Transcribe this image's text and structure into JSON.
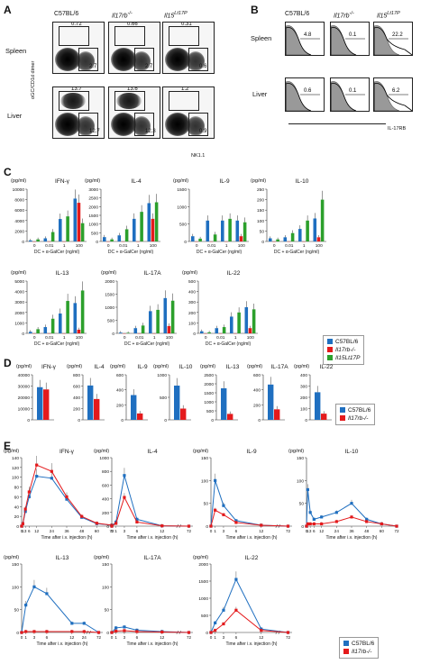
{
  "panels": {
    "A": "A",
    "B": "B",
    "C": "C",
    "D": "D",
    "E": "E"
  },
  "genotypes": {
    "wt": "C57BL/6",
    "ko": "Il17rb",
    "ko_sup": "-/-",
    "tg": "Il15",
    "tg_sup": "Lt17P"
  },
  "panelA": {
    "rows": [
      "Spleen",
      "Liver"
    ],
    "yaxis": "αGC/CD1d dimer",
    "xaxis": "NK1.1",
    "spleen": [
      {
        "top": "0.72",
        "bot": "2.7"
      },
      {
        "top": "0.66",
        "bot": "2.7"
      },
      {
        "top": "0.31",
        "bot": "0.6"
      }
    ],
    "liver": [
      {
        "top": "13.7",
        "bot": "12.7"
      },
      {
        "top": "13.6",
        "bot": "12.3"
      },
      {
        "top": "1.2",
        "bot": "0.9"
      }
    ]
  },
  "panelB": {
    "rows": [
      "Spleen",
      "Liver"
    ],
    "xaxis": "IL-17RB",
    "spleen": [
      "4.8",
      "0.1",
      "22.2"
    ],
    "liver": [
      "0.6",
      "0.1",
      "6.2"
    ]
  },
  "panelC": {
    "unit": "(pg/ml)",
    "xlabel": "DC + α-GalCer (ng/ml)",
    "legend": [
      "C57BL/6",
      "Il17rb-/-",
      "Il15Lt17P"
    ],
    "colors": {
      "wt": "#1f6fc0",
      "ko": "#e41a1c",
      "tg": "#2ca02c"
    }
  },
  "chart_data": [
    {
      "type": "bar",
      "panel": "C",
      "title": "IL-4",
      "categories": [
        "0",
        "0.01",
        "1",
        "100"
      ],
      "ylim": [
        0,
        3000
      ],
      "yticks": [
        "0",
        "500",
        "1000",
        "1500",
        "2000",
        "2500",
        "3000"
      ],
      "series": [
        {
          "name": "C57BL/6",
          "values": [
            250,
            350,
            1300,
            2200
          ]
        },
        {
          "name": "Il17rb-/-",
          "values": [
            0,
            0,
            0,
            1300
          ]
        },
        {
          "name": "Il15Lt17P",
          "values": [
            120,
            700,
            1700,
            2250
          ]
        }
      ]
    },
    {
      "type": "bar",
      "panel": "C",
      "title": "IFN-γ",
      "categories": [
        "0",
        "0.01",
        "1",
        "100"
      ],
      "ylim": [
        0,
        10000
      ],
      "yticks": [
        "0",
        "2000",
        "4000",
        "6000",
        "8000",
        "10000"
      ],
      "series": [
        {
          "name": "C57BL/6",
          "values": [
            200,
            600,
            4300,
            8200
          ]
        },
        {
          "name": "Il17rb-/-",
          "values": [
            0,
            0,
            0,
            7400
          ]
        },
        {
          "name": "Il15Lt17P",
          "values": [
            400,
            1800,
            4800,
            3500
          ]
        }
      ]
    },
    {
      "type": "bar",
      "panel": "C",
      "title": "IL-9",
      "categories": [
        "0",
        "0.01",
        "1",
        "100"
      ],
      "ylim": [
        0,
        1500
      ],
      "yticks": [
        "0",
        "500",
        "1000",
        "1500"
      ],
      "series": [
        {
          "name": "C57BL/6",
          "values": [
            150,
            600,
            600,
            600
          ]
        },
        {
          "name": "Il17rb-/-",
          "values": [
            0,
            0,
            0,
            150
          ]
        },
        {
          "name": "Il15Lt17P",
          "values": [
            80,
            200,
            650,
            550
          ]
        }
      ]
    },
    {
      "type": "bar",
      "panel": "C",
      "title": "IL-10",
      "categories": [
        "0",
        "0.01",
        "1",
        "100"
      ],
      "ylim": [
        0,
        250
      ],
      "yticks": [
        "0",
        "50",
        "100",
        "150",
        "200",
        "250"
      ],
      "series": [
        {
          "name": "C57BL/6",
          "values": [
            15,
            20,
            60,
            110
          ]
        },
        {
          "name": "Il17rb-/-",
          "values": [
            0,
            0,
            0,
            20
          ]
        },
        {
          "name": "Il15Lt17P",
          "values": [
            10,
            40,
            100,
            200
          ]
        }
      ]
    },
    {
      "type": "bar",
      "panel": "C",
      "title": "IL-13",
      "categories": [
        "0",
        "0.01",
        "1",
        "100"
      ],
      "ylim": [
        0,
        5000
      ],
      "yticks": [
        "0",
        "1000",
        "2000",
        "3000",
        "4000",
        "5000"
      ],
      "series": [
        {
          "name": "C57BL/6",
          "values": [
            150,
            600,
            1900,
            2900
          ]
        },
        {
          "name": "Il17rb-/-",
          "values": [
            0,
            0,
            0,
            350
          ]
        },
        {
          "name": "Il15Lt17P",
          "values": [
            400,
            1400,
            3100,
            4100
          ]
        }
      ]
    },
    {
      "type": "bar",
      "panel": "C",
      "title": "IL-17A",
      "categories": [
        "0",
        "0.01",
        "1",
        "100"
      ],
      "ylim": [
        0,
        2000
      ],
      "yticks": [
        "0",
        "500",
        "1000",
        "1500",
        "2000"
      ],
      "series": [
        {
          "name": "C57BL/6",
          "values": [
            30,
            200,
            850,
            1350
          ]
        },
        {
          "name": "Il17rb-/-",
          "values": [
            0,
            0,
            0,
            280
          ]
        },
        {
          "name": "Il15Lt17P",
          "values": [
            20,
            300,
            900,
            1250
          ]
        }
      ]
    },
    {
      "type": "bar",
      "panel": "C",
      "title": "IL-22",
      "categories": [
        "0",
        "0.01",
        "1",
        "100"
      ],
      "ylim": [
        0,
        500
      ],
      "yticks": [
        "0",
        "100",
        "200",
        "300",
        "400",
        "500"
      ],
      "series": [
        {
          "name": "C57BL/6",
          "values": [
            20,
            50,
            160,
            250
          ]
        },
        {
          "name": "Il17rb-/-",
          "values": [
            0,
            0,
            0,
            50
          ]
        },
        {
          "name": "Il15Lt17P",
          "values": [
            10,
            60,
            200,
            230
          ]
        }
      ]
    },
    {
      "type": "bar",
      "panel": "D",
      "title": "IFN-γ",
      "ylim": [
        0,
        40000
      ],
      "yticks": [
        "0",
        "10000",
        "20000",
        "30000",
        "40000"
      ],
      "series": [
        {
          "name": "C57BL/6",
          "values": [
            29000
          ]
        },
        {
          "name": "Il17rb-/-",
          "values": [
            27000
          ]
        }
      ]
    },
    {
      "type": "bar",
      "panel": "D",
      "title": "IL-4",
      "ylim": [
        0,
        800
      ],
      "yticks": [
        "0",
        "200",
        "400",
        "600",
        "800"
      ],
      "series": [
        {
          "name": "C57BL/6",
          "values": [
            610
          ]
        },
        {
          "name": "Il17rb-/-",
          "values": [
            370
          ]
        }
      ]
    },
    {
      "type": "bar",
      "panel": "D",
      "title": "IL-9",
      "ylim": [
        0,
        600
      ],
      "yticks": [
        "0",
        "200",
        "400",
        "600"
      ],
      "series": [
        {
          "name": "C57BL/6",
          "values": [
            330
          ]
        },
        {
          "name": "Il17rb-/-",
          "values": [
            85
          ]
        }
      ]
    },
    {
      "type": "bar",
      "panel": "D",
      "title": "IL-10",
      "ylim": [
        0,
        1000
      ],
      "yticks": [
        "0",
        "500",
        "1000"
      ],
      "series": [
        {
          "name": "C57BL/6",
          "values": [
            760
          ]
        },
        {
          "name": "Il17rb-/-",
          "values": [
            250
          ]
        }
      ]
    },
    {
      "type": "bar",
      "panel": "D",
      "title": "IL-13",
      "ylim": [
        0,
        2500
      ],
      "yticks": [
        "0",
        "500",
        "1000",
        "1500",
        "2000",
        "2500"
      ],
      "series": [
        {
          "name": "C57BL/6",
          "values": [
            1750
          ]
        },
        {
          "name": "Il17rb-/-",
          "values": [
            330
          ]
        }
      ]
    },
    {
      "type": "bar",
      "panel": "D",
      "title": "IL-17A",
      "ylim": [
        0,
        600
      ],
      "yticks": [
        "0",
        "200",
        "400",
        "600"
      ],
      "series": [
        {
          "name": "C57BL/6",
          "values": [
            470
          ]
        },
        {
          "name": "Il17rb-/-",
          "values": [
            140
          ]
        }
      ]
    },
    {
      "type": "bar",
      "panel": "D",
      "title": "IL-22",
      "ylim": [
        0,
        400
      ],
      "yticks": [
        "0",
        "100",
        "200",
        "300",
        "400"
      ],
      "series": [
        {
          "name": "C57BL/6",
          "values": [
            245
          ]
        },
        {
          "name": "Il17rb-/-",
          "values": [
            55
          ]
        }
      ]
    },
    {
      "type": "line",
      "panel": "E",
      "title": "IFN-γ",
      "x": [
        0,
        1,
        3,
        6,
        12,
        24,
        36,
        48,
        60,
        72
      ],
      "ylim": [
        0,
        140
      ],
      "yticks": [
        "0",
        "20",
        "40",
        "60",
        "80",
        "100",
        "120",
        "140"
      ],
      "series": [
        {
          "name": "C57BL/6",
          "values": [
            0,
            5,
            30,
            60,
            102,
            98,
            55,
            18,
            5,
            2
          ]
        },
        {
          "name": "Il17rb-/-",
          "values": [
            0,
            5,
            35,
            70,
            125,
            112,
            60,
            20,
            6,
            2
          ]
        }
      ]
    },
    {
      "type": "line",
      "panel": "E",
      "title": "IL-4",
      "x": [
        0,
        1,
        3,
        6,
        12,
        72
      ],
      "ylim": [
        0,
        1000
      ],
      "yticks": [
        "0",
        "200",
        "400",
        "600",
        "800",
        "1000"
      ],
      "series": [
        {
          "name": "C57BL/6",
          "values": [
            0,
            60,
            740,
            100,
            5,
            0
          ]
        },
        {
          "name": "Il17rb-/-",
          "values": [
            0,
            40,
            420,
            60,
            5,
            0
          ]
        }
      ]
    },
    {
      "type": "line",
      "panel": "E",
      "title": "IL-9",
      "x": [
        0,
        1,
        3,
        6,
        12,
        72
      ],
      "ylim": [
        0,
        150
      ],
      "yticks": [
        "0",
        "50",
        "100",
        "150"
      ],
      "series": [
        {
          "name": "C57BL/6",
          "values": [
            0,
            100,
            45,
            12,
            2,
            0
          ]
        },
        {
          "name": "Il17rb-/-",
          "values": [
            0,
            35,
            25,
            8,
            2,
            0
          ]
        }
      ]
    },
    {
      "type": "line",
      "panel": "E",
      "title": "IL-10",
      "x": [
        0,
        1,
        3,
        6,
        12,
        24,
        36,
        48,
        60,
        72
      ],
      "ylim": [
        0,
        150
      ],
      "yticks": [
        "0",
        "50",
        "100",
        "150"
      ],
      "series": [
        {
          "name": "C57BL/6",
          "values": [
            0,
            80,
            30,
            15,
            20,
            30,
            50,
            15,
            5,
            0
          ]
        },
        {
          "name": "Il17rb-/-",
          "values": [
            0,
            5,
            5,
            5,
            5,
            10,
            20,
            10,
            5,
            0
          ]
        }
      ]
    },
    {
      "type": "line",
      "panel": "E",
      "title": "IL-13",
      "x": [
        0,
        1,
        3,
        6,
        12,
        24,
        72
      ],
      "ylim": [
        0,
        150
      ],
      "yticks": [
        "0",
        "50",
        "100",
        "150"
      ],
      "series": [
        {
          "name": "C57BL/6",
          "values": [
            0,
            60,
            100,
            85,
            20,
            20,
            0
          ]
        },
        {
          "name": "Il17rb-/-",
          "values": [
            0,
            2,
            2,
            2,
            2,
            2,
            0
          ]
        }
      ]
    },
    {
      "type": "line",
      "panel": "E",
      "title": "IL-17A",
      "x": [
        0,
        1,
        3,
        6,
        12,
        72
      ],
      "ylim": [
        0,
        150
      ],
      "yticks": [
        "0",
        "50",
        "100",
        "150"
      ],
      "series": [
        {
          "name": "C57BL/6",
          "values": [
            0,
            10,
            12,
            5,
            2,
            0
          ]
        },
        {
          "name": "Il17rb-/-",
          "values": [
            0,
            3,
            4,
            2,
            1,
            0
          ]
        }
      ]
    },
    {
      "type": "line",
      "panel": "E",
      "title": "IL-22",
      "x": [
        0,
        1,
        3,
        6,
        12,
        72
      ],
      "ylim": [
        0,
        2000
      ],
      "yticks": [
        "0",
        "500",
        "1000",
        "1500",
        "2000"
      ],
      "series": [
        {
          "name": "C57BL/6",
          "values": [
            0,
            280,
            650,
            1550,
            100,
            0
          ]
        },
        {
          "name": "Il17rb-/-",
          "values": [
            0,
            60,
            250,
            650,
            60,
            0
          ]
        }
      ]
    }
  ],
  "panelE": {
    "unit": "(pg/ml)",
    "xlabel": "Time after i.v. injection (h)"
  }
}
